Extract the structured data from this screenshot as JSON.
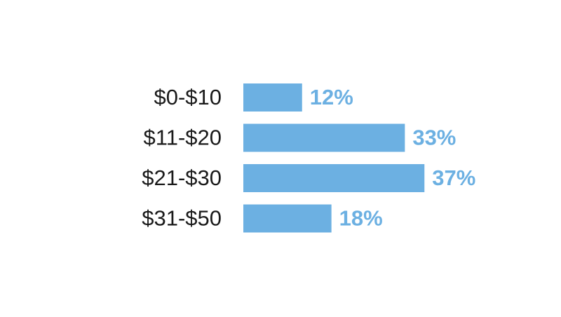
{
  "chart_data": {
    "type": "hbar",
    "categories": [
      "$0-$10",
      "$11-$20",
      "$21-$30",
      "$31-$50"
    ],
    "values": [
      12,
      33,
      37,
      18
    ],
    "value_labels": [
      "12%",
      "33%",
      "37%",
      "18%"
    ],
    "color": "#6cb0e2"
  }
}
